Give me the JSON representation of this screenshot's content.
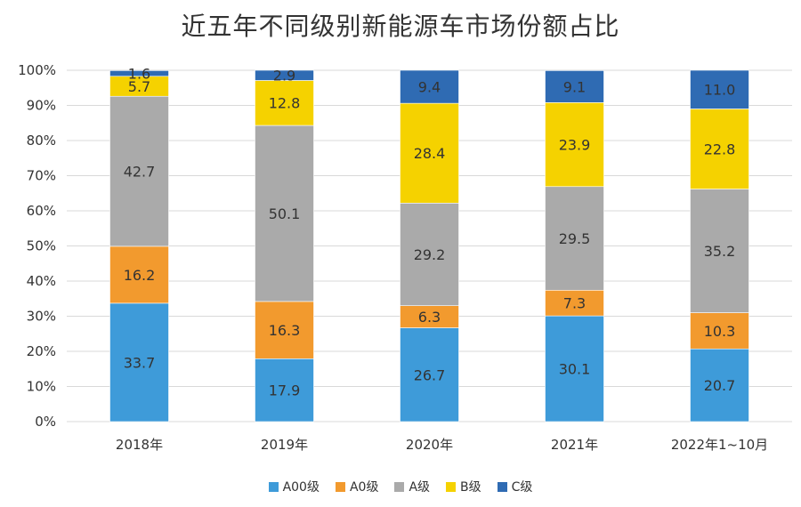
{
  "chart_data": {
    "type": "bar",
    "stacked": true,
    "title": "近五年不同级别新能源车市场份额占比",
    "categories": [
      "2018年",
      "2019年",
      "2020年",
      "2021年",
      "2022年1~10月"
    ],
    "y_ticks": [
      "0%",
      "10%",
      "20%",
      "30%",
      "40%",
      "50%",
      "60%",
      "70%",
      "80%",
      "90%",
      "100%"
    ],
    "ylim": [
      0,
      100
    ],
    "grid": true,
    "legend_position": "bottom",
    "series": [
      {
        "name": "A00级",
        "color": "#3E9BD9",
        "values": [
          33.7,
          17.9,
          26.7,
          30.1,
          20.7
        ],
        "labels": [
          "33.7",
          "17.9",
          "26.7",
          "30.1",
          "20.7"
        ]
      },
      {
        "name": "A0级",
        "color": "#F29A2E",
        "values": [
          16.2,
          16.3,
          6.3,
          7.3,
          10.3
        ],
        "labels": [
          "16.2",
          "16.3",
          "6.3",
          "7.3",
          "10.3"
        ]
      },
      {
        "name": "A级",
        "color": "#AAAAAA",
        "values": [
          42.7,
          50.1,
          29.2,
          29.5,
          35.2
        ],
        "labels": [
          "42.7",
          "50.1",
          "29.2",
          "29.5",
          "35.2"
        ]
      },
      {
        "name": "B级",
        "color": "#F5D200",
        "values": [
          5.7,
          12.8,
          28.4,
          23.9,
          22.8
        ],
        "labels": [
          "5.7",
          "12.8",
          "28.4",
          "23.9",
          "22.8"
        ]
      },
      {
        "name": "C级",
        "color": "#2F6BB3",
        "values": [
          1.6,
          2.9,
          9.4,
          9.1,
          11.0
        ],
        "labels": [
          "1.6",
          "2.9",
          "9.4",
          "9.1",
          "11.0"
        ]
      }
    ]
  }
}
